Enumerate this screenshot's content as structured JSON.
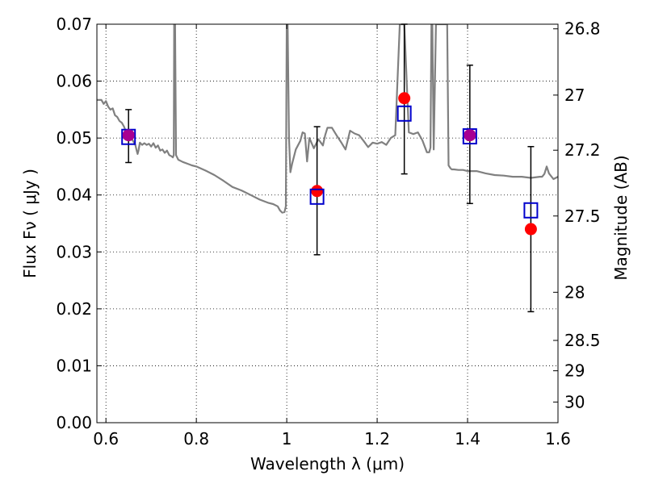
{
  "chart_data": {
    "type": "scatter",
    "title": "",
    "xlabel": "Wavelength  λ (μm)",
    "ylabel": "Flux  Fν  ( μJy )",
    "ylabel_right": "Magnitude (AB)",
    "xlim": [
      0.58,
      1.6
    ],
    "ylim": [
      0.0,
      0.07
    ],
    "grid": true,
    "x_ticks": [
      {
        "value": 0.6,
        "label": "0.6"
      },
      {
        "value": 0.8,
        "label": "0.8"
      },
      {
        "value": 1.0,
        "label": "1"
      },
      {
        "value": 1.2,
        "label": "1.2"
      },
      {
        "value": 1.4,
        "label": "1.4"
      },
      {
        "value": 1.6,
        "label": "1.6"
      }
    ],
    "y_ticks": [
      {
        "value": 0.0,
        "label": "0.00"
      },
      {
        "value": 0.01,
        "label": "0.01"
      },
      {
        "value": 0.02,
        "label": "0.02"
      },
      {
        "value": 0.03,
        "label": "0.03"
      },
      {
        "value": 0.04,
        "label": "0.04"
      },
      {
        "value": 0.05,
        "label": "0.05"
      },
      {
        "value": 0.06,
        "label": "0.06"
      },
      {
        "value": 0.07,
        "label": "0.07"
      }
    ],
    "right_ticks": [
      {
        "value": 26.8,
        "label": "26.8"
      },
      {
        "value": 27.0,
        "label": "27"
      },
      {
        "value": 27.2,
        "label": "27.2"
      },
      {
        "value": 27.5,
        "label": "27.5"
      },
      {
        "value": 28.0,
        "label": "28"
      },
      {
        "value": 28.5,
        "label": "28.5"
      },
      {
        "value": 29.0,
        "label": "29"
      },
      {
        "value": 30.0,
        "label": "30"
      }
    ],
    "series": [
      {
        "kind": "line",
        "color": "#808080",
        "x": [
          0.58,
          0.59,
          0.595,
          0.6,
          0.605,
          0.61,
          0.615,
          0.62,
          0.625,
          0.63,
          0.635,
          0.64,
          0.645,
          0.65,
          0.655,
          0.66,
          0.665,
          0.668,
          0.67,
          0.672,
          0.675,
          0.68,
          0.685,
          0.69,
          0.695,
          0.7,
          0.705,
          0.71,
          0.715,
          0.72,
          0.725,
          0.73,
          0.735,
          0.74,
          0.745,
          0.748,
          0.75,
          0.751,
          0.753,
          0.755,
          0.76,
          0.77,
          0.78,
          0.79,
          0.8,
          0.82,
          0.84,
          0.86,
          0.88,
          0.9,
          0.92,
          0.94,
          0.96,
          0.97,
          0.98,
          0.985,
          0.99,
          0.995,
          0.998,
          1.0,
          1.002,
          1.005,
          1.008,
          1.012,
          1.02,
          1.03,
          1.035,
          1.04,
          1.045,
          1.05,
          1.06,
          1.07,
          1.08,
          1.085,
          1.09,
          1.1,
          1.11,
          1.12,
          1.13,
          1.14,
          1.15,
          1.16,
          1.17,
          1.18,
          1.19,
          1.2,
          1.21,
          1.22,
          1.23,
          1.24,
          1.25,
          1.26,
          1.27,
          1.28,
          1.29,
          1.3,
          1.31,
          1.312,
          1.315,
          1.318,
          1.32,
          1.322,
          1.325,
          1.33,
          1.34,
          1.35,
          1.355,
          1.358,
          1.362,
          1.365,
          1.37,
          1.38,
          1.39,
          1.4,
          1.42,
          1.44,
          1.46,
          1.48,
          1.5,
          1.52,
          1.54,
          1.56,
          1.565,
          1.57,
          1.575,
          1.58,
          1.59,
          1.6
        ],
        "y": [
          0.0567,
          0.0567,
          0.056,
          0.0565,
          0.0555,
          0.055,
          0.0552,
          0.054,
          0.0537,
          0.053,
          0.0527,
          0.052,
          0.051,
          0.0505,
          0.05,
          0.0495,
          0.0488,
          0.0478,
          0.0472,
          0.0478,
          0.0492,
          0.0488,
          0.0491,
          0.0488,
          0.049,
          0.0485,
          0.0491,
          0.0483,
          0.0487,
          0.0478,
          0.048,
          0.0474,
          0.0478,
          0.047,
          0.0468,
          0.0466,
          0.047,
          0.07,
          0.07,
          0.047,
          0.0462,
          0.0458,
          0.0455,
          0.0452,
          0.045,
          0.0443,
          0.0435,
          0.0425,
          0.0414,
          0.0408,
          0.04,
          0.0392,
          0.0386,
          0.0384,
          0.038,
          0.0373,
          0.0369,
          0.037,
          0.038,
          0.07,
          0.07,
          0.05,
          0.044,
          0.0455,
          0.048,
          0.0495,
          0.051,
          0.0508,
          0.0459,
          0.05,
          0.0482,
          0.0498,
          0.0487,
          0.0505,
          0.0518,
          0.0518,
          0.0505,
          0.0493,
          0.048,
          0.0513,
          0.0508,
          0.0505,
          0.0495,
          0.0484,
          0.0492,
          0.049,
          0.0493,
          0.0488,
          0.05,
          0.0505,
          0.07,
          0.07,
          0.051,
          0.0507,
          0.051,
          0.0496,
          0.0475,
          0.0475,
          0.0475,
          0.0483,
          0.07,
          0.07,
          0.048,
          0.07,
          0.07,
          0.07,
          0.07,
          0.0452,
          0.0447,
          0.0445,
          0.0445,
          0.0444,
          0.0444,
          0.0442,
          0.0442,
          0.0438,
          0.0435,
          0.0434,
          0.0432,
          0.0432,
          0.043,
          0.0432,
          0.0432,
          0.0437,
          0.045,
          0.0438,
          0.0428,
          0.0432
        ]
      },
      {
        "kind": "errorbar",
        "color": "#000000",
        "points": [
          {
            "x": 0.65,
            "y": 0.0505,
            "low": 0.0457,
            "high": 0.055
          },
          {
            "x": 1.067,
            "y": 0.0405,
            "low": 0.0295,
            "high": 0.052
          },
          {
            "x": 1.26,
            "y": 0.057,
            "low": 0.0437,
            "high": 0.07
          },
          {
            "x": 1.405,
            "y": 0.0505,
            "low": 0.0385,
            "high": 0.0628
          },
          {
            "x": 1.54,
            "y": 0.034,
            "low": 0.0195,
            "high": 0.0485
          }
        ]
      },
      {
        "kind": "marker-circle",
        "color": "#ff0000",
        "x": [
          0.65,
          1.067,
          1.26,
          1.405,
          1.54
        ],
        "y": [
          0.0505,
          0.0407,
          0.057,
          0.0505,
          0.034
        ]
      },
      {
        "kind": "marker-square-open",
        "color": "#0000cc",
        "x": [
          0.65,
          1.067,
          1.26,
          1.405,
          1.54
        ],
        "y": [
          0.0502,
          0.0397,
          0.0543,
          0.0503,
          0.0373
        ]
      }
    ],
    "overlap_color": "#9900aa"
  }
}
